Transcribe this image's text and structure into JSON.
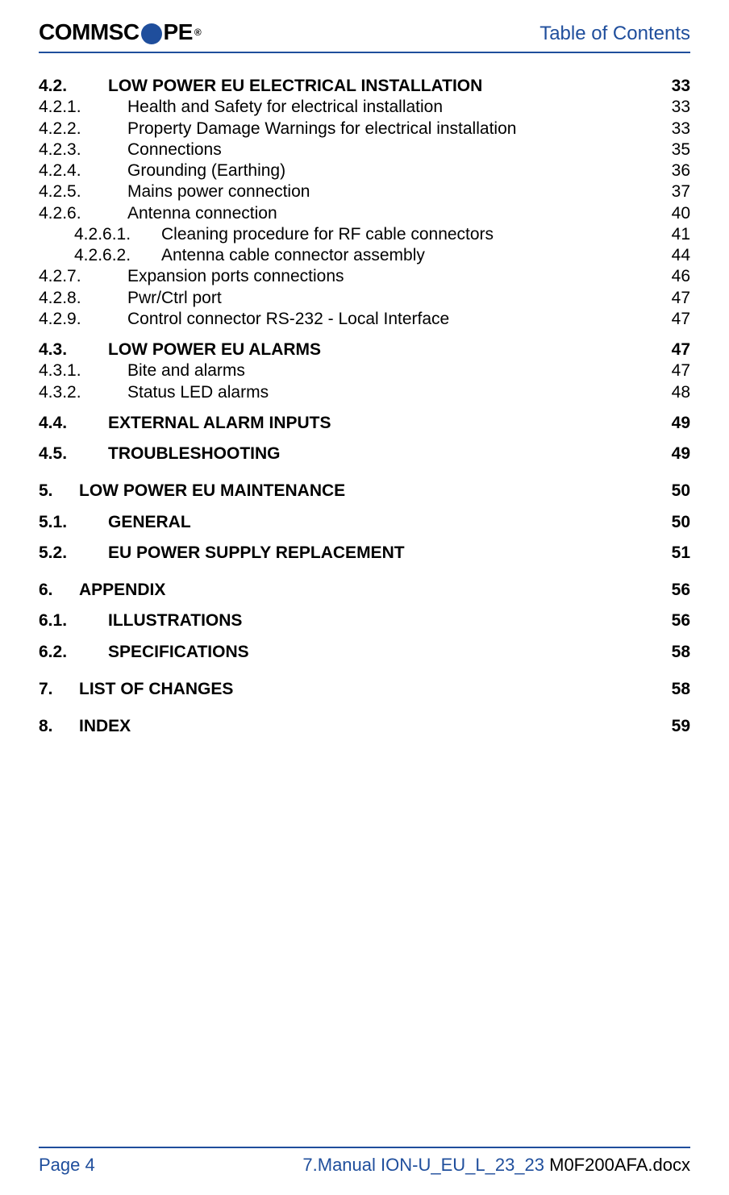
{
  "header": {
    "logo_left": "COMMSC",
    "logo_right": "PE",
    "registered": "®",
    "title": "Table of Contents"
  },
  "toc": [
    {
      "type": "row",
      "bold": true,
      "indent": "indent0",
      "num": "4.2.",
      "title": "LOW POWER EU ELECTRICAL INSTALLATION",
      "page": "33"
    },
    {
      "type": "row",
      "bold": false,
      "indent": "indent1",
      "num": "4.2.1.",
      "title": "Health and Safety for electrical installation",
      "page": "33"
    },
    {
      "type": "row",
      "bold": false,
      "indent": "indent1",
      "num": "4.2.2.",
      "title": "Property Damage Warnings for electrical installation",
      "page": "33"
    },
    {
      "type": "row",
      "bold": false,
      "indent": "indent1",
      "num": "4.2.3.",
      "title": "Connections",
      "page": "35"
    },
    {
      "type": "row",
      "bold": false,
      "indent": "indent1",
      "num": "4.2.4.",
      "title": "Grounding (Earthing)",
      "page": "36"
    },
    {
      "type": "row",
      "bold": false,
      "indent": "indent1",
      "num": "4.2.5.",
      "title": "Mains power connection",
      "page": "37"
    },
    {
      "type": "row",
      "bold": false,
      "indent": "indent1",
      "num": "4.2.6.",
      "title": "Antenna connection",
      "page": "40"
    },
    {
      "type": "row",
      "bold": false,
      "indent": "indent2",
      "num": "4.2.6.1.",
      "title": "Cleaning procedure for RF cable connectors",
      "page": "41"
    },
    {
      "type": "row",
      "bold": false,
      "indent": "indent2",
      "num": "4.2.6.2.",
      "title": "Antenna cable connector assembly",
      "page": "44"
    },
    {
      "type": "row",
      "bold": false,
      "indent": "indent1",
      "num": "4.2.7.",
      "title": "Expansion ports connections",
      "page": "46"
    },
    {
      "type": "row",
      "bold": false,
      "indent": "indent1",
      "num": "4.2.8.",
      "title": "Pwr/Ctrl port",
      "page": "47"
    },
    {
      "type": "row",
      "bold": false,
      "indent": "indent1",
      "num": "4.2.9.",
      "title": "Control connector RS-232 - Local Interface",
      "page": "47"
    },
    {
      "type": "gap",
      "size": "sm"
    },
    {
      "type": "row",
      "bold": true,
      "indent": "indent0",
      "num": "4.3.",
      "title": "LOW POWER EU ALARMS",
      "page": "47"
    },
    {
      "type": "row",
      "bold": false,
      "indent": "indent1",
      "num": "4.3.1.",
      "title": "Bite and alarms",
      "page": "47"
    },
    {
      "type": "row",
      "bold": false,
      "indent": "indent1",
      "num": "4.3.2.",
      "title": "Status LED alarms",
      "page": "48"
    },
    {
      "type": "gap",
      "size": "sm"
    },
    {
      "type": "row",
      "bold": true,
      "indent": "indent0",
      "num": "4.4.",
      "title": "EXTERNAL ALARM INPUTS",
      "page": "49"
    },
    {
      "type": "gap",
      "size": "sm"
    },
    {
      "type": "row",
      "bold": true,
      "indent": "indent0",
      "num": "4.5.",
      "title": "TROUBLESHOOTING",
      "page": "49"
    },
    {
      "type": "gap",
      "size": "md"
    },
    {
      "type": "row",
      "bold": true,
      "indent": "indent0b",
      "num": "5.",
      "title": "LOW POWER EU MAINTENANCE",
      "page": "50"
    },
    {
      "type": "gap",
      "size": "sm"
    },
    {
      "type": "row",
      "bold": true,
      "indent": "indent0",
      "num": "5.1.",
      "title": "GENERAL",
      "page": "50"
    },
    {
      "type": "gap",
      "size": "sm"
    },
    {
      "type": "row",
      "bold": true,
      "indent": "indent0",
      "num": "5.2.",
      "title": "EU POWER SUPPLY REPLACEMENT",
      "page": "51"
    },
    {
      "type": "gap",
      "size": "md"
    },
    {
      "type": "row",
      "bold": true,
      "indent": "indent0b",
      "num": "6.",
      "title": "APPENDIX",
      "page": "56"
    },
    {
      "type": "gap",
      "size": "sm"
    },
    {
      "type": "row",
      "bold": true,
      "indent": "indent0",
      "num": "6.1.",
      "title": "ILLUSTRATIONS",
      "page": "56"
    },
    {
      "type": "gap",
      "size": "sm"
    },
    {
      "type": "row",
      "bold": true,
      "indent": "indent0",
      "num": "6.2.",
      "title": "SPECIFICATIONS",
      "page": "58"
    },
    {
      "type": "gap",
      "size": "md"
    },
    {
      "type": "row",
      "bold": true,
      "indent": "indent0b",
      "num": "7.",
      "title": "LIST OF CHANGES",
      "page": "58"
    },
    {
      "type": "gap",
      "size": "md"
    },
    {
      "type": "row",
      "bold": true,
      "indent": "indent0b",
      "num": "8.",
      "title": "INDEX",
      "page": "59"
    }
  ],
  "footer": {
    "page_label": "Page 4",
    "filename_blue": "7.Manual ION-U_EU_L_23_23 ",
    "filename_black": "M0F200AFA.docx"
  }
}
